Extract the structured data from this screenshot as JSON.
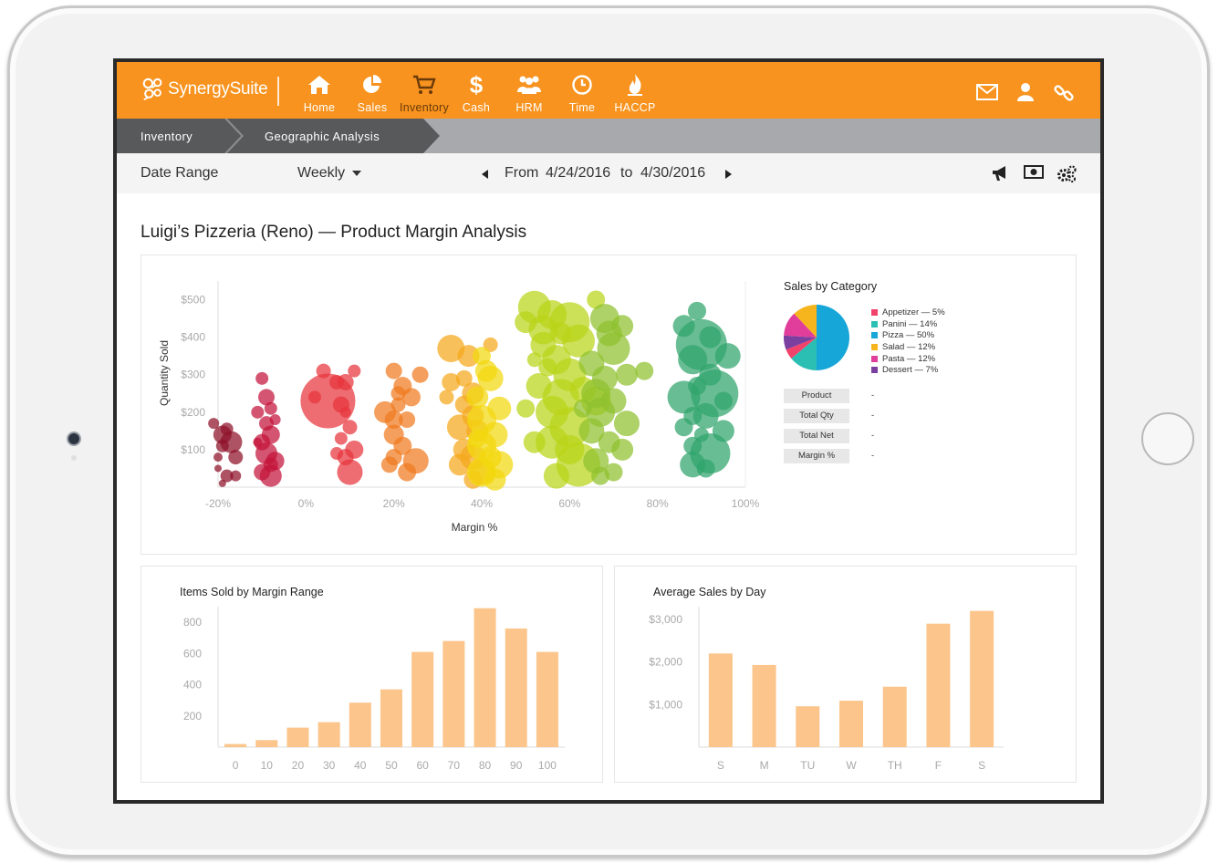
{
  "app": {
    "brand": "SynergySuite",
    "brand_color": "#f7931e"
  },
  "nav": [
    {
      "label": "Home",
      "icon": "home-icon"
    },
    {
      "label": "Sales",
      "icon": "pie-chart-icon"
    },
    {
      "label": "Inventory",
      "icon": "cart-icon",
      "active": true
    },
    {
      "label": "Cash",
      "icon": "dollar-icon"
    },
    {
      "label": "HRM",
      "icon": "people-icon"
    },
    {
      "label": "Time",
      "icon": "clock-icon"
    },
    {
      "label": "HACCP",
      "icon": "flame-icon"
    }
  ],
  "top_icons": [
    "mail-icon",
    "user-icon",
    "link-icon"
  ],
  "breadcrumb": [
    "Inventory",
    "Geographic Analysis"
  ],
  "filter": {
    "date_range_label": "Date Range",
    "period": "Weekly",
    "from_label": "From",
    "from_date": "4/24/2016",
    "to_label": "to",
    "to_date": "4/30/2016",
    "tool_icons": [
      "megaphone-icon",
      "cash-icon",
      "settings-icon"
    ]
  },
  "page_title": "Luigi’s Pizzeria (Reno) — Product Margin Analysis",
  "bubble_panel": {
    "pie_title": "Sales by Category",
    "details": [
      {
        "key": "Product",
        "value": "-"
      },
      {
        "key": "Total Qty",
        "value": "-"
      },
      {
        "key": "Total Net",
        "value": "-"
      },
      {
        "key": "Margin %",
        "value": "-"
      }
    ]
  },
  "bar_panel_1": {
    "title": "Items Sold by Margin Range"
  },
  "bar_panel_2": {
    "title": "Average Sales by Day"
  },
  "chart_data": [
    {
      "type": "scatter",
      "title": "",
      "xlabel": "Margin %",
      "ylabel": "Quantity Sold",
      "xlim": [
        -0.2,
        1.0
      ],
      "ylim": [
        0,
        550
      ],
      "x_ticks": [
        "-20%",
        "0%",
        "20%",
        "40%",
        "60%",
        "80%",
        "100%"
      ],
      "y_ticks": [
        "$100",
        "$200",
        "$300",
        "$400",
        "$500"
      ],
      "grid": false,
      "groups": [
        {
          "color": "#8e1028",
          "points": [
            [
              -0.17,
              120,
              12
            ],
            [
              -0.19,
              140,
              10
            ],
            [
              -0.21,
              170,
              6
            ],
            [
              -0.19,
              110,
              7
            ],
            [
              -0.16,
              80,
              8
            ],
            [
              -0.2,
              80,
              5
            ],
            [
              -0.18,
              30,
              7
            ],
            [
              -0.16,
              30,
              6
            ],
            [
              -0.2,
              50,
              4
            ],
            [
              -0.18,
              155,
              7
            ],
            [
              -0.19,
              10,
              4
            ]
          ]
        },
        {
          "color": "#c4143a",
          "points": [
            [
              -0.1,
              290,
              7
            ],
            [
              -0.09,
              240,
              9
            ],
            [
              -0.11,
              200,
              7
            ],
            [
              -0.08,
              210,
              7
            ],
            [
              -0.09,
              170,
              8
            ],
            [
              -0.08,
              140,
              10
            ],
            [
              -0.1,
              120,
              9
            ],
            [
              -0.09,
              90,
              12
            ],
            [
              -0.07,
              70,
              10
            ],
            [
              -0.1,
              40,
              9
            ],
            [
              -0.08,
              60,
              8
            ],
            [
              -0.08,
              30,
              12
            ],
            [
              -0.11,
              120,
              5
            ],
            [
              -0.07,
              180,
              6
            ]
          ]
        },
        {
          "color": "#e8353b",
          "points": [
            [
              0.05,
              230,
              30
            ],
            [
              0.04,
              310,
              8
            ],
            [
              0.02,
              240,
              7
            ],
            [
              0.09,
              280,
              9
            ],
            [
              0.08,
              220,
              9
            ],
            [
              0.1,
              160,
              8
            ],
            [
              0.08,
              130,
              7
            ],
            [
              0.11,
              100,
              10
            ],
            [
              0.09,
              80,
              9
            ],
            [
              0.1,
              40,
              14
            ],
            [
              0.07,
              90,
              7
            ],
            [
              0.11,
              310,
              7
            ],
            [
              0.09,
              200,
              6
            ],
            [
              0.07,
              280,
              8
            ]
          ]
        },
        {
          "color": "#f07a1f",
          "points": [
            [
              0.2,
              310,
              9
            ],
            [
              0.22,
              270,
              10
            ],
            [
              0.21,
              220,
              8
            ],
            [
              0.18,
              200,
              12
            ],
            [
              0.2,
              180,
              10
            ],
            [
              0.24,
              240,
              10
            ],
            [
              0.23,
              180,
              9
            ],
            [
              0.2,
              140,
              11
            ],
            [
              0.22,
              110,
              10
            ],
            [
              0.2,
              80,
              9
            ],
            [
              0.19,
              60,
              9
            ],
            [
              0.25,
              70,
              14
            ],
            [
              0.23,
              40,
              10
            ],
            [
              0.26,
              300,
              9
            ],
            [
              0.21,
              250,
              8
            ]
          ]
        },
        {
          "color": "#f5a81a",
          "points": [
            [
              0.33,
              370,
              15
            ],
            [
              0.37,
              350,
              12
            ],
            [
              0.36,
              290,
              9
            ],
            [
              0.33,
              280,
              10
            ],
            [
              0.38,
              250,
              12
            ],
            [
              0.36,
              220,
              10
            ],
            [
              0.38,
              190,
              12
            ],
            [
              0.35,
              160,
              14
            ],
            [
              0.39,
              150,
              12
            ],
            [
              0.36,
              100,
              12
            ],
            [
              0.38,
              80,
              14
            ],
            [
              0.35,
              60,
              12
            ],
            [
              0.4,
              40,
              14
            ],
            [
              0.38,
              20,
              10
            ],
            [
              0.42,
              380,
              8
            ],
            [
              0.32,
              240,
              8
            ]
          ]
        },
        {
          "color": "#f2d80e",
          "points": [
            [
              0.4,
              350,
              10
            ],
            [
              0.42,
              290,
              14
            ],
            [
              0.39,
              240,
              12
            ],
            [
              0.44,
              210,
              13
            ],
            [
              0.4,
              180,
              16
            ],
            [
              0.43,
              140,
              14
            ],
            [
              0.4,
              110,
              16
            ],
            [
              0.42,
              80,
              12
            ],
            [
              0.44,
              60,
              15
            ],
            [
              0.4,
              40,
              16
            ],
            [
              0.43,
              20,
              12
            ],
            [
              0.41,
              310,
              12
            ],
            [
              0.39,
              130,
              10
            ]
          ]
        },
        {
          "color": "#b8d417",
          "points": [
            [
              0.52,
              480,
              18
            ],
            [
              0.56,
              460,
              16
            ],
            [
              0.6,
              440,
              22
            ],
            [
              0.5,
              440,
              12
            ],
            [
              0.54,
              420,
              16
            ],
            [
              0.58,
              410,
              12
            ],
            [
              0.62,
              390,
              18
            ],
            [
              0.54,
              380,
              14
            ],
            [
              0.57,
              340,
              16
            ],
            [
              0.6,
              300,
              18
            ],
            [
              0.53,
              270,
              14
            ],
            [
              0.58,
              240,
              20
            ],
            [
              0.56,
              200,
              18
            ],
            [
              0.6,
              160,
              22
            ],
            [
              0.56,
              120,
              18
            ],
            [
              0.6,
              100,
              16
            ],
            [
              0.62,
              60,
              24
            ],
            [
              0.57,
              30,
              14
            ],
            [
              0.55,
              320,
              10
            ],
            [
              0.63,
              260,
              14
            ],
            [
              0.52,
              340,
              8
            ],
            [
              0.5,
              210,
              10
            ],
            [
              0.66,
              500,
              10
            ],
            [
              0.66,
              230,
              16
            ],
            [
              0.52,
              120,
              12
            ]
          ]
        },
        {
          "color": "#8fc12e",
          "points": [
            [
              0.68,
              450,
              16
            ],
            [
              0.72,
              430,
              12
            ],
            [
              0.69,
              410,
              14
            ],
            [
              0.7,
              370,
              18
            ],
            [
              0.65,
              330,
              14
            ],
            [
              0.68,
              290,
              14
            ],
            [
              0.73,
              300,
              12
            ],
            [
              0.66,
              250,
              16
            ],
            [
              0.7,
              230,
              14
            ],
            [
              0.67,
              200,
              16
            ],
            [
              0.73,
              170,
              14
            ],
            [
              0.65,
              150,
              14
            ],
            [
              0.69,
              120,
              12
            ],
            [
              0.72,
              100,
              12
            ],
            [
              0.66,
              70,
              14
            ],
            [
              0.7,
              40,
              10
            ],
            [
              0.63,
              210,
              10
            ],
            [
              0.77,
              310,
              10
            ],
            [
              0.67,
              30,
              10
            ]
          ]
        },
        {
          "color": "#2fa36b",
          "points": [
            [
              0.86,
              430,
              12
            ],
            [
              0.92,
              400,
              12
            ],
            [
              0.9,
              380,
              28
            ],
            [
              0.88,
              340,
              16
            ],
            [
              0.92,
              300,
              12
            ],
            [
              0.89,
              270,
              10
            ],
            [
              0.86,
              240,
              18
            ],
            [
              0.93,
              250,
              26
            ],
            [
              0.88,
              190,
              10
            ],
            [
              0.86,
              160,
              10
            ],
            [
              0.9,
              140,
              8
            ],
            [
              0.88,
              110,
              10
            ],
            [
              0.92,
              90,
              22
            ],
            [
              0.88,
              60,
              14
            ],
            [
              0.91,
              50,
              10
            ],
            [
              0.95,
              230,
              10
            ],
            [
              0.95,
              150,
              12
            ],
            [
              0.91,
              190,
              14
            ],
            [
              0.96,
              350,
              14
            ],
            [
              0.89,
              470,
              10
            ]
          ]
        }
      ]
    },
    {
      "type": "pie",
      "title": "Sales by Category",
      "slices": [
        {
          "label": "Appetizer — 5%",
          "name": "Appetizer",
          "value": 5,
          "color": "#f1426b"
        },
        {
          "label": "Panini — 14%",
          "name": "Panini",
          "value": 14,
          "color": "#2bbfb4"
        },
        {
          "label": "Pizza — 50%",
          "name": "Pizza",
          "value": 50,
          "color": "#16a6d8"
        },
        {
          "label": "Salad — 12%",
          "name": "Salad",
          "value": 12,
          "color": "#f6b51d"
        },
        {
          "label": "Pasta — 12%",
          "name": "Pasta",
          "value": 12,
          "color": "#e13d9a"
        },
        {
          "label": "Dessert — 7%",
          "name": "Dessert",
          "value": 7,
          "color": "#7b3fa0"
        }
      ]
    },
    {
      "type": "bar",
      "title": "Items Sold by Margin Range",
      "categories": [
        "0",
        "10",
        "20",
        "30",
        "40",
        "50",
        "60",
        "70",
        "80",
        "90",
        "100"
      ],
      "values": [
        20,
        45,
        125,
        160,
        285,
        370,
        610,
        680,
        890,
        760,
        610
      ],
      "y_ticks": [
        "200",
        "400",
        "600",
        "800"
      ],
      "ylim": [
        0,
        900
      ],
      "color": "#fbc58b"
    },
    {
      "type": "bar",
      "title": "Average Sales by Day",
      "categories": [
        "S",
        "M",
        "TU",
        "W",
        "TH",
        "F",
        "S"
      ],
      "values": [
        2200,
        1930,
        960,
        1090,
        1420,
        2900,
        3200
      ],
      "y_ticks": [
        "$1,000",
        "$2,000",
        "$3,000"
      ],
      "ylim": [
        0,
        3300
      ],
      "color": "#fbc58b"
    }
  ]
}
